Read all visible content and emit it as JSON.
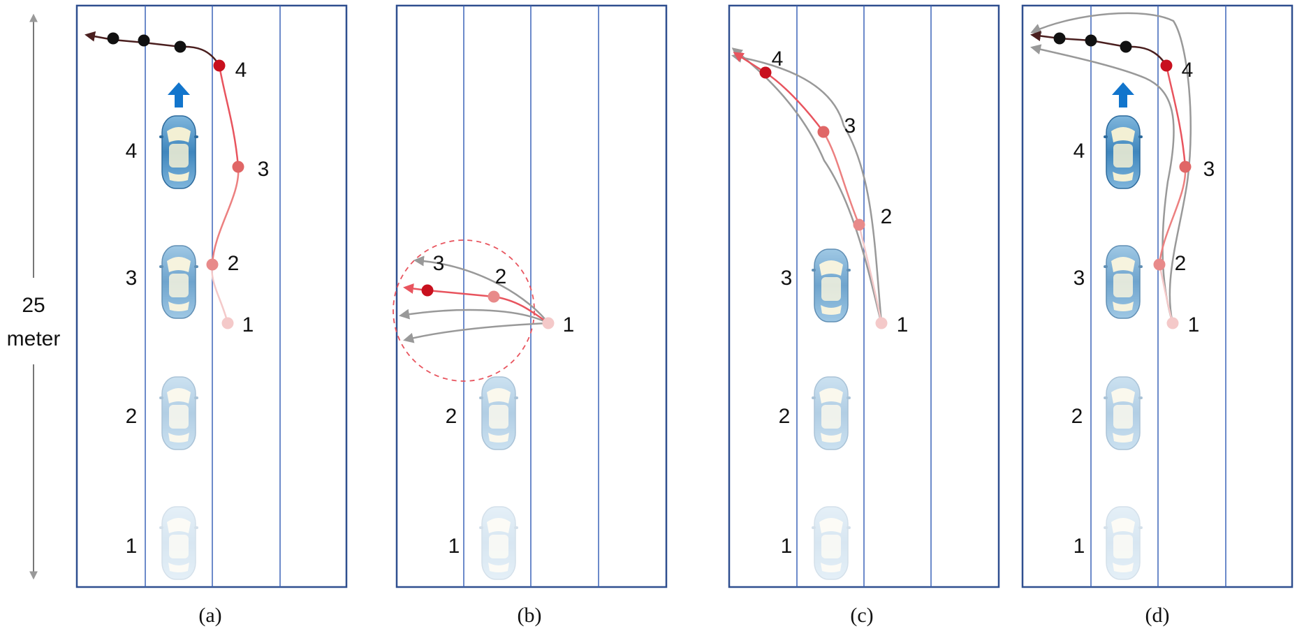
{
  "scale_bar": {
    "value": "25",
    "unit": "meter",
    "color": "#777777"
  },
  "colors": {
    "road_border": "#2f4f8f",
    "lane_line": "#3b63b8",
    "trajectory_light": "#f4c9c9",
    "trajectory_mid": "#ec8080",
    "trajectory_red": "#c8101e",
    "past_trajectory": "#4a1f1f",
    "future_point": "#111111",
    "candidate_gray": "#999999",
    "heading_arrow": "#1275cc",
    "car_body": "#4d8fc0"
  },
  "panels": [
    {
      "id": "a",
      "caption": "(a)",
      "car_labels": [
        "1",
        "2",
        "3",
        "4"
      ],
      "point_labels": [
        "1",
        "2",
        "3",
        "4"
      ],
      "heading_arrow": "heading-arrow-icon"
    },
    {
      "id": "b",
      "caption": "(b)",
      "car_labels": [
        "1",
        "2"
      ],
      "point_labels": [
        "1",
        "2",
        "3"
      ]
    },
    {
      "id": "c",
      "caption": "(c)",
      "car_labels": [
        "1",
        "2",
        "3"
      ],
      "point_labels": [
        "1",
        "2",
        "3",
        "4"
      ]
    },
    {
      "id": "d",
      "caption": "(d)",
      "car_labels": [
        "1",
        "2",
        "3",
        "4"
      ],
      "point_labels": [
        "1",
        "2",
        "3",
        "4"
      ],
      "heading_arrow": "heading-arrow-icon"
    }
  ]
}
